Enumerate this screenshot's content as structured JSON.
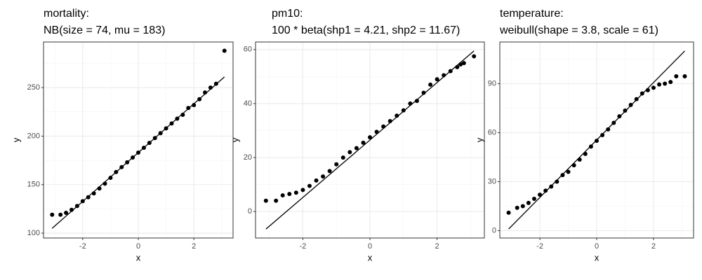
{
  "chart_data": [
    {
      "type": "scatter",
      "title": "mortality:",
      "subtitle": "NB(size = 74, mu = 183)",
      "x_label": "x",
      "y_label": "y",
      "xlim": [
        -3.41,
        3.41
      ],
      "ylim": [
        95,
        297
      ],
      "xticks": [
        -2,
        0,
        2
      ],
      "yticks": [
        100,
        150,
        200,
        250
      ],
      "x_minor_grid": [
        -3,
        -1,
        1,
        3
      ],
      "y_minor_grid": [
        125,
        175,
        225,
        275
      ],
      "grid": true,
      "color": "#000000",
      "points": {
        "x": [
          -3.1,
          -2.8,
          -2.6,
          -2.4,
          -2.2,
          -2.0,
          -1.8,
          -1.6,
          -1.4,
          -1.2,
          -1.0,
          -0.8,
          -0.6,
          -0.4,
          -0.2,
          0,
          0.2,
          0.4,
          0.6,
          0.8,
          1.0,
          1.2,
          1.4,
          1.6,
          1.8,
          2.0,
          2.2,
          2.4,
          2.6,
          2.8,
          3.1
        ],
        "y": [
          119,
          119,
          121,
          124,
          128,
          133,
          137,
          141,
          146,
          151,
          157,
          163,
          168,
          173,
          178,
          183,
          188,
          193,
          198,
          203,
          208,
          213,
          218,
          222,
          229,
          232,
          238,
          245,
          250,
          254,
          288
        ]
      },
      "reference_line": {
        "x": [
          -3.1,
          3.1
        ],
        "y": [
          105,
          261
        ]
      }
    },
    {
      "type": "scatter",
      "title": "pm10:",
      "subtitle": "100 * beta(shp1 = 4.21, shp2 = 11.67)",
      "x_label": "x",
      "y_label": "y",
      "xlim": [
        -3.41,
        3.41
      ],
      "ylim": [
        -9.8,
        62.8
      ],
      "xticks": [
        -2,
        0,
        2
      ],
      "yticks": [
        0,
        20,
        40,
        60
      ],
      "x_minor_grid": [
        -3,
        -1,
        1,
        3
      ],
      "y_minor_grid": [
        10,
        30,
        50
      ],
      "grid": true,
      "color": "#000000",
      "points": {
        "x": [
          -3.1,
          -2.8,
          -2.6,
          -2.4,
          -2.2,
          -2.0,
          -1.8,
          -1.6,
          -1.4,
          -1.2,
          -1.0,
          -0.8,
          -0.6,
          -0.4,
          -0.2,
          0,
          0.2,
          0.4,
          0.6,
          0.8,
          1.0,
          1.2,
          1.4,
          1.6,
          1.8,
          2.0,
          2.2,
          2.4,
          2.6,
          2.7,
          2.8,
          3.1
        ],
        "y": [
          4,
          4,
          6,
          6.5,
          7,
          8,
          9.5,
          11.5,
          13,
          15,
          17.5,
          20,
          22,
          23.5,
          25.5,
          27.5,
          29.5,
          31.5,
          33.5,
          35.5,
          37.5,
          40,
          41,
          44,
          47,
          49,
          50.5,
          52,
          53.5,
          54.5,
          55,
          57.5
        ]
      },
      "reference_line": {
        "x": [
          -3.1,
          3.1
        ],
        "y": [
          -6.5,
          59.5
        ]
      }
    },
    {
      "type": "scatter",
      "title": "temperature:",
      "subtitle": "weibull(shape = 3.8, scale = 61)",
      "x_label": "x",
      "y_label": "y",
      "xlim": [
        -3.41,
        3.41
      ],
      "ylim": [
        -4.5,
        115.5
      ],
      "xticks": [
        -2,
        0,
        2
      ],
      "yticks": [
        0,
        30,
        60,
        90
      ],
      "x_minor_grid": [
        -3,
        -1,
        1,
        3
      ],
      "y_minor_grid": [
        15,
        45,
        75,
        105
      ],
      "grid": true,
      "color": "#000000",
      "points": {
        "x": [
          -3.1,
          -2.8,
          -2.6,
          -2.4,
          -2.2,
          -2.0,
          -1.8,
          -1.6,
          -1.4,
          -1.2,
          -1.0,
          -0.8,
          -0.6,
          -0.4,
          -0.2,
          0,
          0.2,
          0.4,
          0.6,
          0.8,
          1.0,
          1.2,
          1.4,
          1.6,
          1.8,
          2.0,
          2.2,
          2.4,
          2.6,
          2.8,
          3.1
        ],
        "y": [
          11,
          14,
          15,
          17,
          19.5,
          22,
          24.5,
          27,
          30,
          34,
          36,
          40,
          43.5,
          47,
          51.5,
          55,
          58.5,
          62,
          66,
          70,
          73.5,
          77,
          80.5,
          84,
          86,
          87.5,
          89.5,
          90,
          91,
          94.5,
          94.5
        ]
      },
      "reference_line": {
        "x": [
          -3.1,
          3.1
        ],
        "y": [
          1,
          110
        ]
      }
    }
  ]
}
